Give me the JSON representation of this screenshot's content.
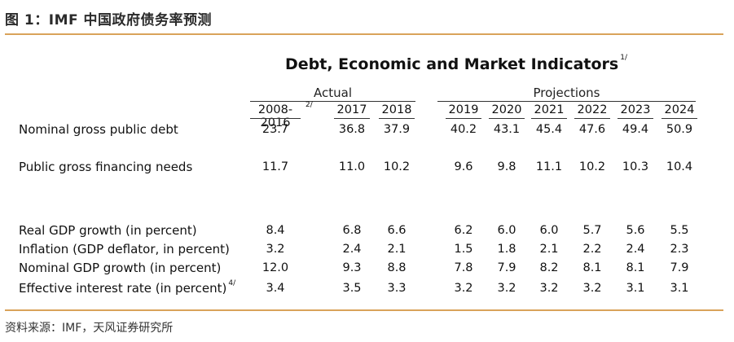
{
  "figure_title": "图 1：IMF 中国政府债务率预测",
  "table": {
    "title": "Debt, Economic and Market Indicators",
    "title_note": "1/",
    "groups": {
      "actual": "Actual",
      "projections": "Projections"
    },
    "years": [
      "2008-2016",
      "2017",
      "2018",
      "2019",
      "2020",
      "2021",
      "2022",
      "2023",
      "2024"
    ],
    "year0_note": "2/",
    "rows": [
      {
        "label": "Nominal gross public debt",
        "note": "",
        "values": [
          "23.7",
          "36.8",
          "37.9",
          "40.2",
          "43.1",
          "45.4",
          "47.6",
          "49.4",
          "50.9"
        ]
      },
      {
        "label": "Public gross financing needs",
        "note": "",
        "values": [
          "11.7",
          "11.0",
          "10.2",
          "9.6",
          "9.8",
          "11.1",
          "10.2",
          "10.3",
          "10.4"
        ]
      },
      {
        "label": "Real GDP growth (in percent)",
        "note": "",
        "values": [
          "8.4",
          "6.8",
          "6.6",
          "6.2",
          "6.0",
          "6.0",
          "5.7",
          "5.6",
          "5.5"
        ]
      },
      {
        "label": "Inflation (GDP deflator, in percent)",
        "note": "",
        "values": [
          "3.2",
          "2.4",
          "2.1",
          "1.5",
          "1.8",
          "2.1",
          "2.2",
          "2.4",
          "2.3"
        ]
      },
      {
        "label": "Nominal GDP growth (in percent)",
        "note": "",
        "values": [
          "12.0",
          "9.3",
          "8.8",
          "7.8",
          "7.9",
          "8.2",
          "8.1",
          "8.1",
          "7.9"
        ]
      },
      {
        "label": "Effective interest rate (in percent)",
        "note": "4/",
        "values": [
          "3.4",
          "3.5",
          "3.3",
          "3.2",
          "3.2",
          "3.2",
          "3.2",
          "3.1",
          "3.1"
        ]
      }
    ]
  },
  "source": "资料来源：IMF，天风证券研究所",
  "colors": {
    "rule": "#d9a35a",
    "text": "#111111"
  }
}
